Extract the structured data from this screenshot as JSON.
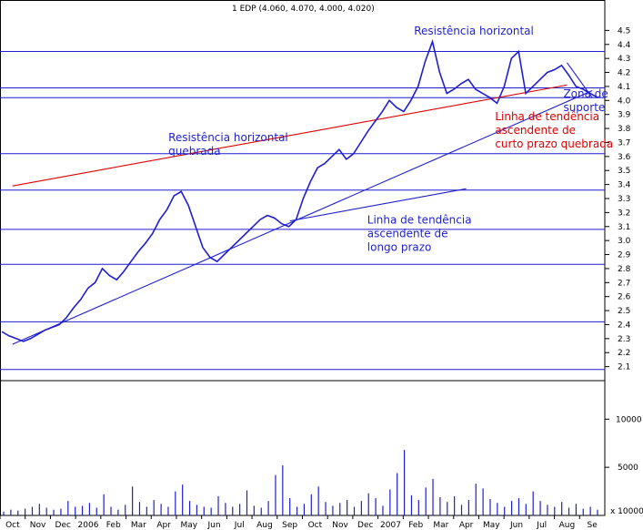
{
  "chart_data": {
    "type": "line",
    "ticker_header": "1 EDP (4.060, 4.070, 4.000, 4.020)",
    "ylim": [
      2.0,
      4.6
    ],
    "y_ticks": [
      2.1,
      2.2,
      2.3,
      2.4,
      2.5,
      2.6,
      2.7,
      2.8,
      2.9,
      3.0,
      3.1,
      3.2,
      3.3,
      3.4,
      3.5,
      3.6,
      3.7,
      3.8,
      3.9,
      4.0,
      4.1,
      4.2,
      4.3,
      4.4,
      4.5
    ],
    "volume_ticks": [
      5000,
      10000
    ],
    "volume_bottom_label": "x 10000",
    "x_months": [
      "Oct",
      "Nov",
      "Dec",
      "2006",
      "Feb",
      "Mar",
      "Apr",
      "May",
      "Jun",
      "Jul",
      "Aug",
      "Sep",
      "Oct",
      "Nov",
      "Dec",
      "2007",
      "Feb",
      "Mar",
      "Apr",
      "May",
      "Jun",
      "Jul",
      "Aug",
      "Se"
    ],
    "horizontal_levels": [
      2.08,
      2.42,
      2.83,
      3.08,
      3.36,
      3.62,
      4.02,
      4.09,
      4.35
    ],
    "price_series": [
      2.35,
      2.32,
      2.3,
      2.28,
      2.3,
      2.33,
      2.36,
      2.38,
      2.4,
      2.45,
      2.52,
      2.58,
      2.66,
      2.7,
      2.8,
      2.75,
      2.72,
      2.78,
      2.85,
      2.92,
      2.98,
      3.05,
      3.15,
      3.22,
      3.32,
      3.35,
      3.25,
      3.1,
      2.95,
      2.88,
      2.85,
      2.9,
      2.95,
      3.0,
      3.05,
      3.1,
      3.15,
      3.18,
      3.16,
      3.12,
      3.1,
      3.15,
      3.3,
      3.42,
      3.52,
      3.55,
      3.6,
      3.65,
      3.58,
      3.62,
      3.7,
      3.78,
      3.85,
      3.92,
      4.0,
      3.95,
      3.92,
      4.0,
      4.1,
      4.28,
      4.42,
      4.2,
      4.05,
      4.08,
      4.12,
      4.15,
      4.08,
      4.05,
      4.02,
      3.98,
      4.1,
      4.3,
      4.35,
      4.05,
      4.1,
      4.15,
      4.2,
      4.22,
      4.25,
      4.18,
      4.1,
      4.08,
      4.05,
      4.02
    ],
    "volume_series": [
      400,
      600,
      500,
      700,
      900,
      1200,
      800,
      600,
      700,
      1500,
      900,
      1000,
      1300,
      800,
      2200,
      900,
      600,
      1100,
      3000,
      1400,
      900,
      1600,
      1200,
      900,
      2500,
      3200,
      1500,
      1100,
      900,
      800,
      2000,
      1300,
      900,
      1200,
      2600,
      1000,
      800,
      1500,
      4200,
      5200,
      1800,
      900,
      1200,
      2200,
      3000,
      1400,
      1000,
      1300,
      1600,
      900,
      1500,
      2300,
      1800,
      1000,
      2700,
      4400,
      6800,
      2100,
      1600,
      2900,
      3800,
      1900,
      1400,
      2000,
      1100,
      1600,
      3300,
      2800,
      1700,
      1300,
      900,
      1500,
      1800,
      1200,
      2500,
      1500,
      1100,
      900,
      1400,
      800,
      1200,
      700,
      900,
      600
    ],
    "trendlines": [
      {
        "name": "long-term-support",
        "from": [
          "Oct",
          2.26
        ],
        "to": [
          "Se",
          4.07
        ],
        "color": "#1f1fd0"
      },
      {
        "name": "short-term-support",
        "from": [
          "Oct",
          3.39
        ],
        "to": [
          "Aug",
          4.11
        ],
        "color": "#e00000"
      },
      {
        "name": "triangle-top",
        "from": [
          "Apr",
          3.37
        ],
        "to": [
          "Sep",
          3.14
        ],
        "color": "#1f1fd0"
      },
      {
        "name": "wedge-top",
        "from": [
          "Aug",
          4.27
        ],
        "to": [
          "Se",
          4.02
        ],
        "color": "#1f1fd0"
      }
    ],
    "annotations": [
      {
        "text": "Resistência horizontal",
        "color": "#1f1fd0"
      },
      {
        "text": "Resistência horizontal",
        "text2": "quebrada",
        "color": "#1f1fd0"
      },
      {
        "text": "Linha de tendência",
        "text2": "ascendente de",
        "text3": "longo prazo",
        "color": "#1f1fd0"
      },
      {
        "text": "Linha de tendência",
        "text2": "ascendente de",
        "text3": "curto prazo quebrada",
        "color": "#e00000"
      },
      {
        "text": "Zona de",
        "text2": "suporte",
        "color": "#1f1fd0"
      }
    ],
    "colors": {
      "price": "#1f1fd0",
      "grid": "#000000",
      "horizontal_level": "#1f1fd0",
      "background": "#ffffff"
    },
    "xlabel": "",
    "ylabel": ""
  }
}
